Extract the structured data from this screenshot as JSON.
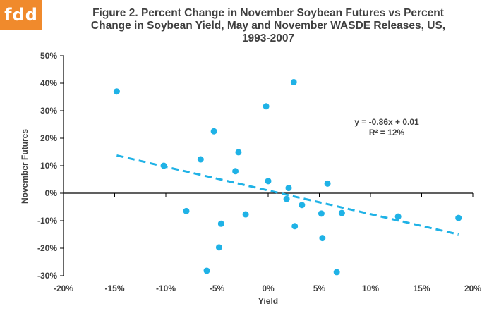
{
  "logo": "fdd",
  "title_lines": [
    "Figure 2.  Percent Change in November Soybean Futures vs Percent",
    "Change in Soybean Yield, May and November WASDE Releases, US,",
    "1993-2007"
  ],
  "colors": {
    "point": "#1fb2e6",
    "trend": "#1fb2e6",
    "axis": "#000000",
    "text": "#404040",
    "logo_bg": "#f08a2c"
  },
  "chart_data": {
    "type": "scatter",
    "title": "Figure 2.  Percent Change in November Soybean Futures vs Percent Change in Soybean Yield, May and November WASDE Releases, US, 1993-2007",
    "xlabel": "Yield",
    "ylabel": "November Futures",
    "xlim": [
      -0.2,
      0.2
    ],
    "ylim": [
      -0.3,
      0.5
    ],
    "x_ticks": [
      -0.2,
      -0.15,
      -0.1,
      -0.05,
      0.0,
      0.05,
      0.1,
      0.15,
      0.2
    ],
    "x_tick_labels": [
      "-20%",
      "-15%",
      "-10%",
      "-5%",
      "0%",
      "5%",
      "10%",
      "15%",
      "20%"
    ],
    "y_ticks": [
      0.5,
      0.4,
      0.3,
      0.2,
      0.1,
      0.0,
      -0.1,
      -0.2,
      -0.3
    ],
    "y_tick_labels": [
      "50%",
      "40%",
      "30%",
      "20%",
      "10%",
      "0%",
      "-10%",
      "-20%",
      "-30%"
    ],
    "grid": false,
    "points": [
      {
        "x": -0.148,
        "y": 0.37
      },
      {
        "x": -0.102,
        "y": 0.1
      },
      {
        "x": -0.08,
        "y": -0.065
      },
      {
        "x": -0.066,
        "y": 0.123
      },
      {
        "x": -0.06,
        "y": -0.282
      },
      {
        "x": -0.053,
        "y": 0.225
      },
      {
        "x": -0.048,
        "y": -0.197
      },
      {
        "x": -0.046,
        "y": -0.111
      },
      {
        "x": -0.032,
        "y": 0.08
      },
      {
        "x": -0.029,
        "y": 0.149
      },
      {
        "x": -0.022,
        "y": -0.077
      },
      {
        "x": -0.002,
        "y": 0.316
      },
      {
        "x": 0.0,
        "y": 0.044
      },
      {
        "x": 0.018,
        "y": -0.021
      },
      {
        "x": 0.02,
        "y": 0.019
      },
      {
        "x": 0.025,
        "y": 0.404
      },
      {
        "x": 0.026,
        "y": -0.12
      },
      {
        "x": 0.033,
        "y": -0.043
      },
      {
        "x": 0.052,
        "y": -0.074
      },
      {
        "x": 0.053,
        "y": -0.163
      },
      {
        "x": 0.058,
        "y": 0.035
      },
      {
        "x": 0.067,
        "y": -0.287
      },
      {
        "x": 0.072,
        "y": -0.072
      },
      {
        "x": 0.127,
        "y": -0.085
      },
      {
        "x": 0.186,
        "y": -0.09
      }
    ],
    "trendline": {
      "slope": -0.86,
      "intercept": 0.01,
      "x_range": [
        -0.148,
        0.186
      ],
      "equation": "y = -0.86x + 0.01",
      "r_squared": "R² = 12%"
    }
  }
}
